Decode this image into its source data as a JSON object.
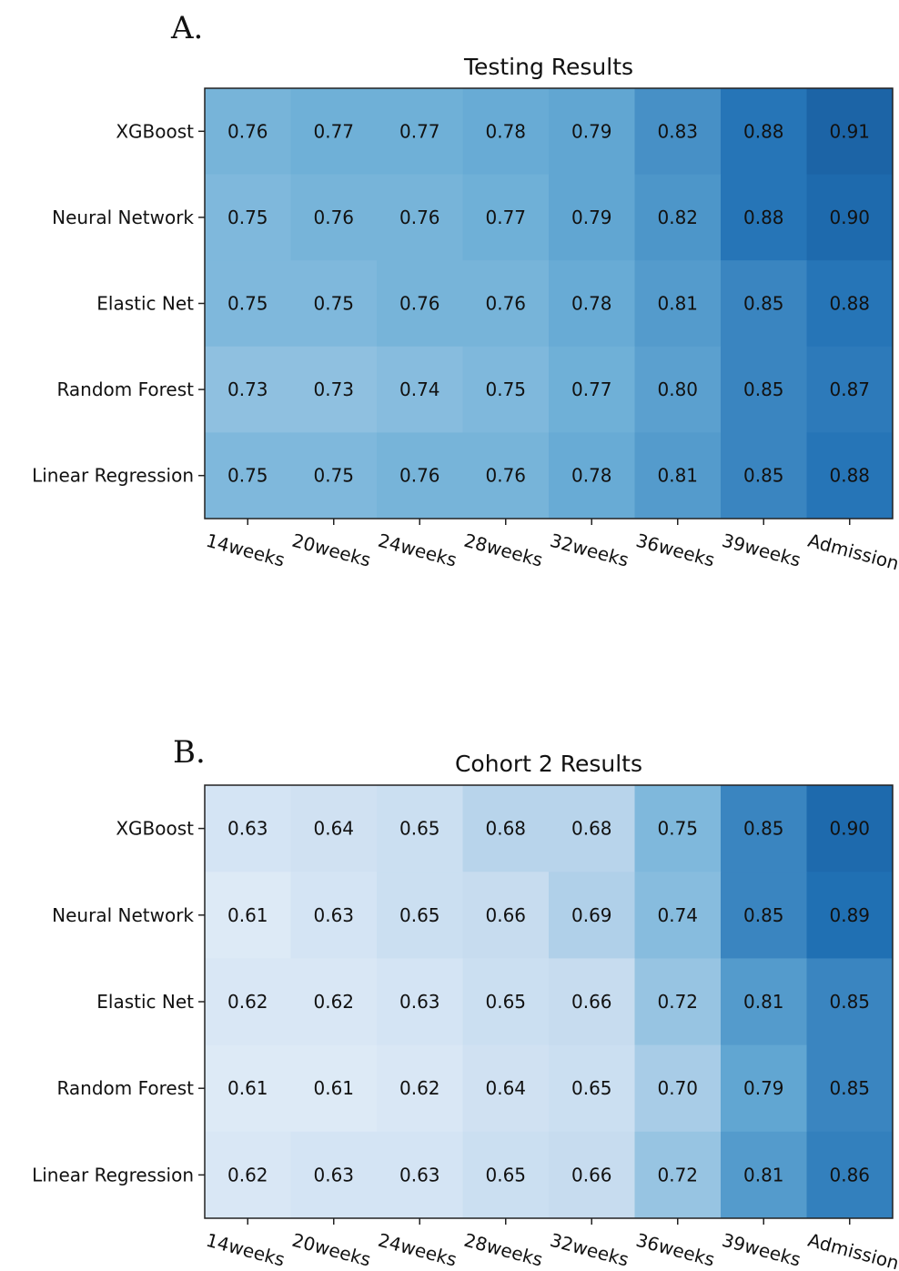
{
  "chart_data": [
    {
      "type": "heatmap",
      "panel_label": "A.",
      "title": "Testing Results",
      "rows": [
        "XGBoost",
        "Neural Network",
        "Elastic Net",
        "Random Forest",
        "Linear Regression"
      ],
      "columns": [
        "14weeks",
        "20weeks",
        "24weeks",
        "28weeks",
        "32weeks",
        "36weeks",
        "39weeks",
        "Admission"
      ],
      "values": [
        [
          0.76,
          0.77,
          0.77,
          0.78,
          0.79,
          0.83,
          0.88,
          0.91
        ],
        [
          0.75,
          0.76,
          0.76,
          0.77,
          0.79,
          0.82,
          0.88,
          0.9
        ],
        [
          0.75,
          0.75,
          0.76,
          0.76,
          0.78,
          0.81,
          0.85,
          0.88
        ],
        [
          0.73,
          0.73,
          0.74,
          0.75,
          0.77,
          0.8,
          0.85,
          0.87
        ],
        [
          0.75,
          0.75,
          0.76,
          0.76,
          0.78,
          0.81,
          0.85,
          0.88
        ]
      ],
      "colormap": "Blues",
      "color_range": [
        0.55,
        1.0
      ]
    },
    {
      "type": "heatmap",
      "panel_label": "B.",
      "title": "Cohort 2 Results",
      "rows": [
        "XGBoost",
        "Neural Network",
        "Elastic Net",
        "Random Forest",
        "Linear Regression"
      ],
      "columns": [
        "14weeks",
        "20weeks",
        "24weeks",
        "28weeks",
        "32weeks",
        "36weeks",
        "39weeks",
        "Admission"
      ],
      "values": [
        [
          0.63,
          0.64,
          0.65,
          0.68,
          0.68,
          0.75,
          0.85,
          0.9
        ],
        [
          0.61,
          0.63,
          0.65,
          0.66,
          0.69,
          0.74,
          0.85,
          0.89
        ],
        [
          0.62,
          0.62,
          0.63,
          0.65,
          0.66,
          0.72,
          0.81,
          0.85
        ],
        [
          0.61,
          0.61,
          0.62,
          0.64,
          0.65,
          0.7,
          0.79,
          0.85
        ],
        [
          0.62,
          0.63,
          0.63,
          0.65,
          0.66,
          0.72,
          0.81,
          0.86
        ]
      ],
      "colormap": "Blues",
      "color_range": [
        0.55,
        1.0
      ]
    }
  ]
}
